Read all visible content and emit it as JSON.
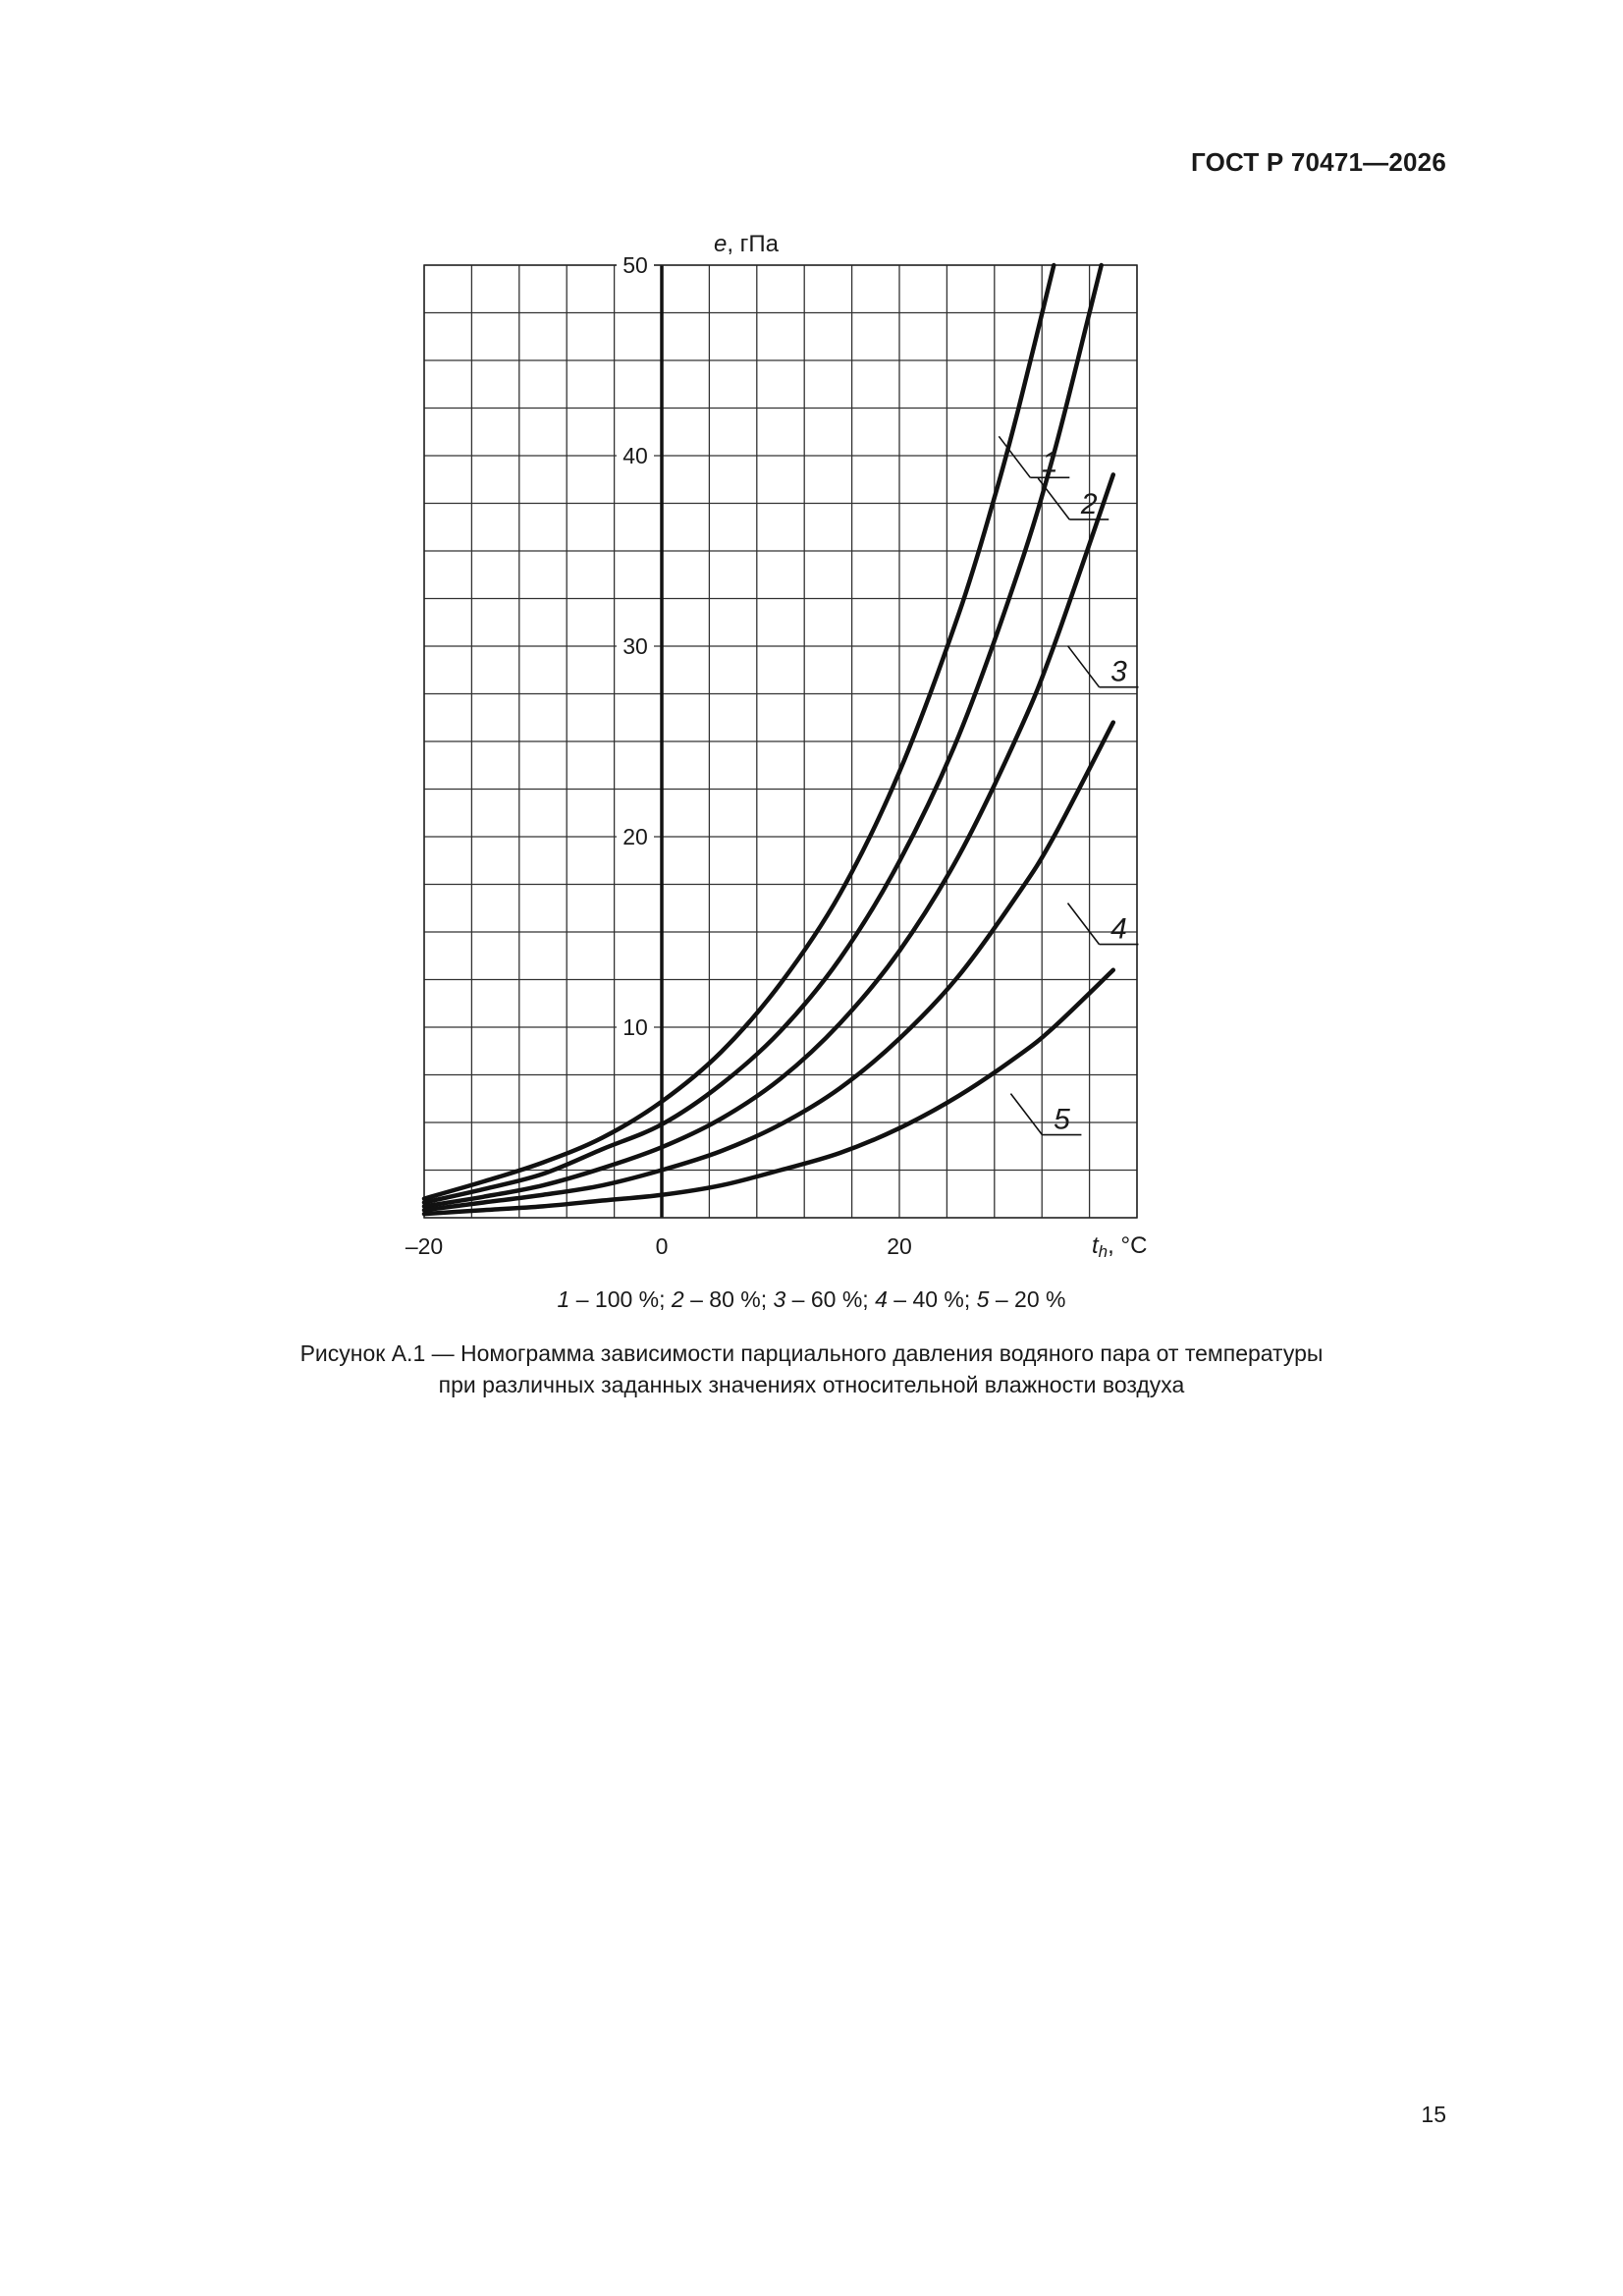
{
  "document": {
    "header": "ГОСТ Р 70471—2026",
    "page_number": "15"
  },
  "chart_data": {
    "type": "line",
    "title": "",
    "xlabel": "t_h, °C",
    "xlabel_parts": {
      "symbol": "t",
      "subscript": "h",
      "unit": ", °C"
    },
    "ylabel": "e, гПа",
    "ylabel_parts": {
      "symbol": "e",
      "unit": ", гПа"
    },
    "xlim": [
      -20,
      40
    ],
    "ylim": [
      0,
      50
    ],
    "x_ticks": [
      {
        "value": -20,
        "label": "–20"
      },
      {
        "value": 0,
        "label": "0"
      },
      {
        "value": 20,
        "label": "20"
      }
    ],
    "y_ticks": [
      {
        "value": 10,
        "label": "10"
      },
      {
        "value": 20,
        "label": "20"
      },
      {
        "value": 30,
        "label": "30"
      },
      {
        "value": 40,
        "label": "40"
      },
      {
        "value": 50,
        "label": "50"
      }
    ],
    "grid": true,
    "grid_step_x": 4,
    "grid_step_y": 2.5,
    "series": [
      {
        "name": "1",
        "legend": "100 %",
        "points": [
          [
            -20,
            1.0
          ],
          [
            -15,
            1.9
          ],
          [
            -10,
            2.9
          ],
          [
            -5,
            4.2
          ],
          [
            0,
            6.1
          ],
          [
            5,
            8.7
          ],
          [
            10,
            12.3
          ],
          [
            15,
            17.0
          ],
          [
            20,
            23.4
          ],
          [
            25,
            31.7
          ],
          [
            28,
            37.8
          ],
          [
            30,
            42.4
          ],
          [
            33,
            50.0
          ]
        ]
      },
      {
        "name": "2",
        "legend": "80 %",
        "points": [
          [
            -20,
            0.8
          ],
          [
            -15,
            1.5
          ],
          [
            -10,
            2.3
          ],
          [
            -5,
            3.6
          ],
          [
            0,
            4.9
          ],
          [
            5,
            7.0
          ],
          [
            10,
            9.8
          ],
          [
            15,
            13.6
          ],
          [
            20,
            18.7
          ],
          [
            25,
            25.3
          ],
          [
            30,
            33.9
          ],
          [
            33,
            40.1
          ],
          [
            36,
            47.5
          ],
          [
            37,
            50.0
          ]
        ]
      },
      {
        "name": "3",
        "legend": "60 %",
        "points": [
          [
            -20,
            0.6
          ],
          [
            -15,
            1.1
          ],
          [
            -10,
            1.7
          ],
          [
            -5,
            2.6
          ],
          [
            0,
            3.7
          ],
          [
            5,
            5.2
          ],
          [
            10,
            7.3
          ],
          [
            15,
            10.2
          ],
          [
            20,
            14.0
          ],
          [
            25,
            19.0
          ],
          [
            30,
            25.4
          ],
          [
            33,
            30.0
          ],
          [
            38,
            39.0
          ]
        ]
      },
      {
        "name": "4",
        "legend": "40 %",
        "points": [
          [
            -20,
            0.4
          ],
          [
            -15,
            0.8
          ],
          [
            -10,
            1.2
          ],
          [
            -5,
            1.7
          ],
          [
            0,
            2.5
          ],
          [
            5,
            3.5
          ],
          [
            10,
            4.9
          ],
          [
            15,
            6.8
          ],
          [
            20,
            9.4
          ],
          [
            25,
            12.7
          ],
          [
            30,
            17.0
          ],
          [
            33,
            20.0
          ],
          [
            38,
            26.0
          ]
        ]
      },
      {
        "name": "5",
        "legend": "20 %",
        "points": [
          [
            -20,
            0.2
          ],
          [
            -15,
            0.4
          ],
          [
            -10,
            0.6
          ],
          [
            -5,
            0.9
          ],
          [
            0,
            1.2
          ],
          [
            5,
            1.7
          ],
          [
            10,
            2.5
          ],
          [
            15,
            3.4
          ],
          [
            20,
            4.7
          ],
          [
            25,
            6.4
          ],
          [
            30,
            8.5
          ],
          [
            33,
            10.0
          ],
          [
            38,
            13.0
          ]
        ]
      }
    ],
    "curve_labels": [
      {
        "name": "1",
        "at": [
          29.2,
          40.5
        ]
      },
      {
        "name": "2",
        "at": [
          32.5,
          38.3
        ]
      },
      {
        "name": "3",
        "at": [
          35.0,
          29.5
        ]
      },
      {
        "name": "4",
        "at": [
          35.0,
          16.0
        ]
      },
      {
        "name": "5",
        "at": [
          30.2,
          6.0
        ]
      }
    ]
  },
  "legend_line": [
    {
      "num": "1",
      "text": " – 100 %; "
    },
    {
      "num": "2",
      "text": " – 80 %; "
    },
    {
      "num": "3",
      "text": " – 60 %; "
    },
    {
      "num": "4",
      "text": " – 40 %; "
    },
    {
      "num": "5",
      "text": " – 20 %"
    }
  ],
  "caption": {
    "line1": "Рисунок А.1 — Номограмма зависимости парциального давления водяного пара от температуры",
    "line2": "при различных заданных значениях относительной влажности воздуха"
  }
}
